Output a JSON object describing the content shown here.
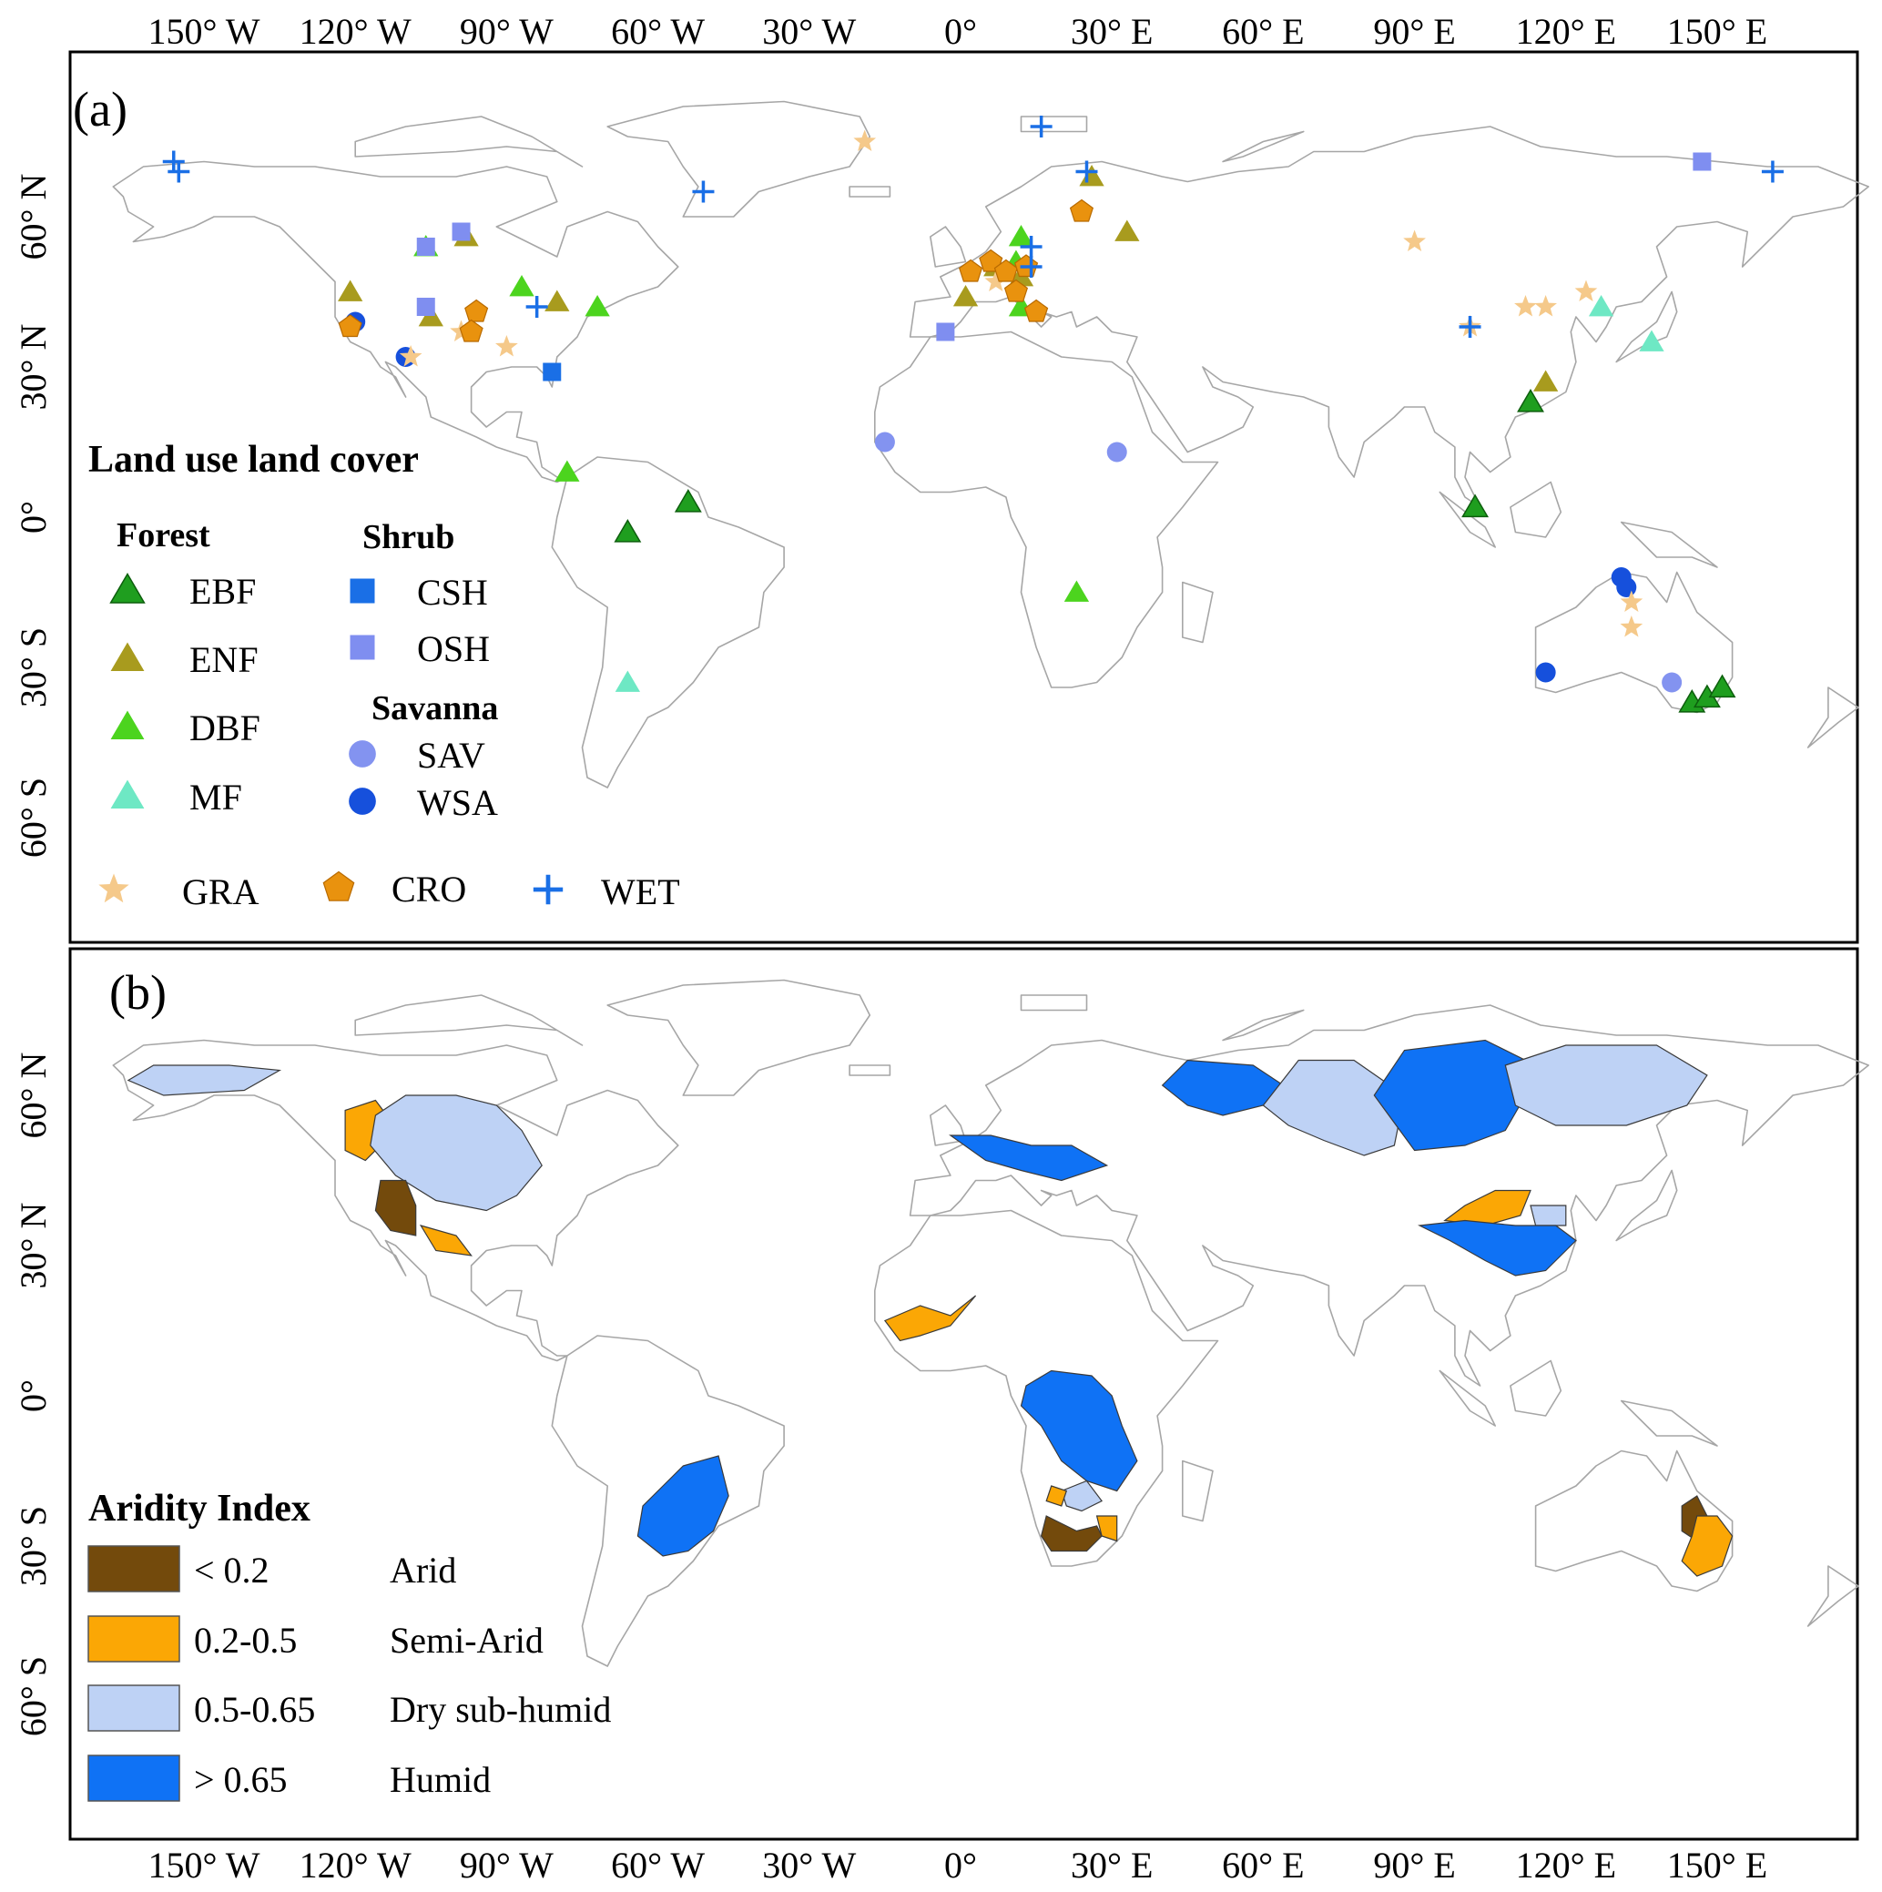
{
  "lon_ticks": [
    "150° W",
    "120° W",
    "90° W",
    "60° W",
    "30° W",
    "0°",
    "30° E",
    "60° E",
    "90° E",
    "120° E",
    "150° E"
  ],
  "lat_ticks": [
    "60° N",
    "30° N",
    "0°",
    "30° S",
    "60° S"
  ],
  "panel_a": {
    "label": "(a)",
    "legend": {
      "title": "Land use land cover",
      "forest_title": "Forest",
      "shrub_title": "Shrub",
      "savanna_title": "Savanna",
      "forest": [
        "EBF",
        "ENF",
        "DBF",
        "MF"
      ],
      "shrub": [
        "CSH",
        "OSH"
      ],
      "savanna": [
        "SAV",
        "WSA"
      ],
      "other": [
        "GRA",
        "CRO",
        "WET"
      ]
    },
    "colors": {
      "EBF": "#1f9e1f",
      "ENF": "#a89b1e",
      "DBF": "#4cd41e",
      "MF": "#6ee8c4",
      "CSH": "#1a6fe6",
      "OSH": "#7f8ef0",
      "SAV": "#8393f0",
      "WSA": "#1650dc",
      "GRA": "#f5c98a",
      "CRO": "#e9920e",
      "WET": "#1a6fe6"
    },
    "sites": [
      {
        "t": "EBF",
        "lon": -66,
        "lat": -3
      },
      {
        "t": "EBF",
        "lon": -54,
        "lat": 3
      },
      {
        "t": "EBF",
        "lon": 102,
        "lat": 2
      },
      {
        "t": "EBF",
        "lon": 113,
        "lat": 23
      },
      {
        "t": "EBF",
        "lon": 145,
        "lat": -37
      },
      {
        "t": "EBF",
        "lon": 148,
        "lat": -36
      },
      {
        "t": "EBF",
        "lon": 151,
        "lat": -34
      },
      {
        "t": "ENF",
        "lon": -121,
        "lat": 45
      },
      {
        "t": "ENF",
        "lon": -105,
        "lat": 40
      },
      {
        "t": "ENF",
        "lon": -98,
        "lat": 56
      },
      {
        "t": "ENF",
        "lon": -80,
        "lat": 43
      },
      {
        "t": "ENF",
        "lon": 1,
        "lat": 44
      },
      {
        "t": "ENF",
        "lon": 7,
        "lat": 50
      },
      {
        "t": "ENF",
        "lon": 12,
        "lat": 48
      },
      {
        "t": "ENF",
        "lon": 26,
        "lat": 68
      },
      {
        "t": "ENF",
        "lon": 33,
        "lat": 57
      },
      {
        "t": "ENF",
        "lon": 116,
        "lat": 27
      },
      {
        "t": "DBF",
        "lon": -106,
        "lat": 54
      },
      {
        "t": "DBF",
        "lon": -87,
        "lat": 46
      },
      {
        "t": "DBF",
        "lon": -72,
        "lat": 42
      },
      {
        "t": "DBF",
        "lon": -78,
        "lat": 9
      },
      {
        "t": "DBF",
        "lon": 23,
        "lat": -15
      },
      {
        "t": "DBF",
        "lon": 12,
        "lat": 56
      },
      {
        "t": "DBF",
        "lon": 11,
        "lat": 51
      },
      {
        "t": "DBF",
        "lon": 12,
        "lat": 42
      },
      {
        "t": "MF",
        "lon": -66,
        "lat": -33
      },
      {
        "t": "MF",
        "lon": 127,
        "lat": 42
      },
      {
        "t": "MF",
        "lon": 137,
        "lat": 35
      },
      {
        "t": "CSH",
        "lon": -81,
        "lat": 29
      },
      {
        "t": "OSH",
        "lon": -106,
        "lat": 54
      },
      {
        "t": "OSH",
        "lon": -99,
        "lat": 57
      },
      {
        "t": "OSH",
        "lon": -106,
        "lat": 42
      },
      {
        "t": "OSH",
        "lon": -3,
        "lat": 37
      },
      {
        "t": "OSH",
        "lon": 147,
        "lat": 71
      },
      {
        "t": "SAV",
        "lon": -15,
        "lat": 15
      },
      {
        "t": "SAV",
        "lon": 31,
        "lat": 13
      },
      {
        "t": "SAV",
        "lon": 141,
        "lat": -33
      },
      {
        "t": "WSA",
        "lon": -120,
        "lat": 39
      },
      {
        "t": "WSA",
        "lon": -110,
        "lat": 32
      },
      {
        "t": "WSA",
        "lon": 131,
        "lat": -12
      },
      {
        "t": "WSA",
        "lon": 132,
        "lat": -14
      },
      {
        "t": "WSA",
        "lon": 116,
        "lat": -31
      },
      {
        "t": "GRA",
        "lon": -109,
        "lat": 32
      },
      {
        "t": "GRA",
        "lon": -99,
        "lat": 37
      },
      {
        "t": "GRA",
        "lon": -90,
        "lat": 34
      },
      {
        "t": "GRA",
        "lon": -19,
        "lat": 75
      },
      {
        "t": "GRA",
        "lon": 90,
        "lat": 55
      },
      {
        "t": "GRA",
        "lon": 101,
        "lat": 38
      },
      {
        "t": "GRA",
        "lon": 112,
        "lat": 42
      },
      {
        "t": "GRA",
        "lon": 116,
        "lat": 42
      },
      {
        "t": "GRA",
        "lon": 124,
        "lat": 45
      },
      {
        "t": "GRA",
        "lon": 133,
        "lat": -17
      },
      {
        "t": "GRA",
        "lon": 133,
        "lat": -22
      },
      {
        "t": "GRA",
        "lon": 7,
        "lat": 47
      },
      {
        "t": "CRO",
        "lon": -121,
        "lat": 38
      },
      {
        "t": "CRO",
        "lon": -96,
        "lat": 41
      },
      {
        "t": "CRO",
        "lon": -97,
        "lat": 37
      },
      {
        "t": "CRO",
        "lon": 2,
        "lat": 49
      },
      {
        "t": "CRO",
        "lon": 6,
        "lat": 51
      },
      {
        "t": "CRO",
        "lon": 9,
        "lat": 49
      },
      {
        "t": "CRO",
        "lon": 13,
        "lat": 50
      },
      {
        "t": "CRO",
        "lon": 15,
        "lat": 41
      },
      {
        "t": "CRO",
        "lon": 24,
        "lat": 61
      },
      {
        "t": "CRO",
        "lon": 11,
        "lat": 45
      },
      {
        "t": "WET",
        "lon": -156,
        "lat": 71
      },
      {
        "t": "WET",
        "lon": -155,
        "lat": 69
      },
      {
        "t": "WET",
        "lon": -51,
        "lat": 65
      },
      {
        "t": "WET",
        "lon": 16,
        "lat": 78
      },
      {
        "t": "WET",
        "lon": 25,
        "lat": 69
      },
      {
        "t": "WET",
        "lon": 14,
        "lat": 54
      },
      {
        "t": "WET",
        "lon": 14,
        "lat": 50
      },
      {
        "t": "WET",
        "lon": -84,
        "lat": 42
      },
      {
        "t": "WET",
        "lon": 101,
        "lat": 38
      },
      {
        "t": "WET",
        "lon": 161,
        "lat": 69
      }
    ]
  },
  "panel_b": {
    "label": "(b)",
    "legend": {
      "title": "Aridity Index",
      "classes": [
        {
          "range": "< 0.2",
          "name": "Arid",
          "color": "#734a0c"
        },
        {
          "range": "0.2-0.5",
          "name": "Semi-Arid",
          "color": "#fba705"
        },
        {
          "range": "0.5-0.65",
          "name": "Dry sub-humid",
          "color": "#bed2f5"
        },
        {
          "range": "> 0.65",
          "name": "Humid",
          "color": "#0f72f5"
        }
      ]
    },
    "basins": [
      {
        "cls": "Dry sub-humid",
        "pts": [
          [
            -165,
            63
          ],
          [
            -160,
            66
          ],
          [
            -145,
            66
          ],
          [
            -135,
            65
          ],
          [
            -142,
            61
          ],
          [
            -158,
            60
          ]
        ]
      },
      {
        "cls": "Semi-Arid",
        "pts": [
          [
            -122,
            57
          ],
          [
            -116,
            59
          ],
          [
            -113,
            55
          ],
          [
            -114,
            51
          ],
          [
            -118,
            47
          ],
          [
            -122,
            49
          ]
        ]
      },
      {
        "cls": "Dry sub-humid",
        "pts": [
          [
            -116,
            56
          ],
          [
            -110,
            60
          ],
          [
            -100,
            60
          ],
          [
            -92,
            58
          ],
          [
            -87,
            53
          ],
          [
            -83,
            46
          ],
          [
            -88,
            40
          ],
          [
            -94,
            37
          ],
          [
            -104,
            39
          ],
          [
            -112,
            44
          ],
          [
            -117,
            50
          ]
        ]
      },
      {
        "cls": "Arid",
        "pts": [
          [
            -115,
            43
          ],
          [
            -110,
            43
          ],
          [
            -108,
            38
          ],
          [
            -108,
            32
          ],
          [
            -113,
            33
          ],
          [
            -116,
            37
          ]
        ]
      },
      {
        "cls": "Semi-Arid",
        "pts": [
          [
            -107,
            34
          ],
          [
            -100,
            32
          ],
          [
            -97,
            28
          ],
          [
            -104,
            29
          ]
        ]
      },
      {
        "cls": "Semi-Arid",
        "pts": [
          [
            -15,
            15
          ],
          [
            -8,
            18
          ],
          [
            -2,
            16
          ],
          [
            3,
            20
          ],
          [
            -2,
            14
          ],
          [
            -8,
            12
          ],
          [
            -12,
            11
          ]
        ]
      },
      {
        "cls": "Humid",
        "pts": [
          [
            13,
            2
          ],
          [
            18,
            5
          ],
          [
            26,
            4
          ],
          [
            30,
            0
          ],
          [
            32,
            -6
          ],
          [
            35,
            -13
          ],
          [
            31,
            -19
          ],
          [
            25,
            -17
          ],
          [
            20,
            -13
          ],
          [
            16,
            -6
          ],
          [
            12,
            -2
          ]
        ]
      },
      {
        "cls": "Dry sub-humid",
        "pts": [
          [
            20,
            -19
          ],
          [
            25,
            -17
          ],
          [
            28,
            -21
          ],
          [
            24,
            -23
          ],
          [
            21,
            -22
          ]
        ]
      },
      {
        "cls": "Semi-Arid",
        "pts": [
          [
            18,
            -18
          ],
          [
            21,
            -19
          ],
          [
            20,
            -22
          ],
          [
            17,
            -21
          ]
        ]
      },
      {
        "cls": "Arid",
        "pts": [
          [
            17,
            -24
          ],
          [
            23,
            -27
          ],
          [
            27,
            -26
          ],
          [
            28,
            -28
          ],
          [
            25,
            -31
          ],
          [
            18,
            -31
          ],
          [
            16,
            -28
          ]
        ]
      },
      {
        "cls": "Semi-Arid",
        "pts": [
          [
            27,
            -24
          ],
          [
            31,
            -24
          ],
          [
            31,
            -29
          ],
          [
            28,
            -28
          ]
        ]
      },
      {
        "cls": "Humid",
        "pts": [
          [
            -55,
            -14
          ],
          [
            -48,
            -12
          ],
          [
            -46,
            -20
          ],
          [
            -49,
            -27
          ],
          [
            -54,
            -31
          ],
          [
            -59,
            -32
          ],
          [
            -64,
            -28
          ],
          [
            -63,
            -22
          ],
          [
            -58,
            -17
          ]
        ]
      },
      {
        "cls": "Humid",
        "pts": [
          [
            -2,
            52
          ],
          [
            6,
            52
          ],
          [
            14,
            50
          ],
          [
            22,
            50
          ],
          [
            29,
            46
          ],
          [
            20,
            43
          ],
          [
            12,
            45
          ],
          [
            5,
            47
          ]
        ]
      },
      {
        "cls": "Humid",
        "pts": [
          [
            40,
            62
          ],
          [
            45,
            67
          ],
          [
            58,
            66
          ],
          [
            64,
            62
          ],
          [
            60,
            58
          ],
          [
            52,
            56
          ],
          [
            45,
            58
          ]
        ]
      },
      {
        "cls": "Dry sub-humid",
        "pts": [
          [
            60,
            58
          ],
          [
            67,
            67
          ],
          [
            78,
            67
          ],
          [
            88,
            60
          ],
          [
            86,
            50
          ],
          [
            80,
            48
          ],
          [
            72,
            51
          ],
          [
            65,
            54
          ]
        ]
      },
      {
        "cls": "Humid",
        "pts": [
          [
            82,
            60
          ],
          [
            88,
            69
          ],
          [
            104,
            71
          ],
          [
            112,
            67
          ],
          [
            112,
            60
          ],
          [
            108,
            53
          ],
          [
            100,
            50
          ],
          [
            90,
            49
          ]
        ]
      },
      {
        "cls": "Dry sub-humid",
        "pts": [
          [
            108,
            66
          ],
          [
            120,
            70
          ],
          [
            138,
            70
          ],
          [
            148,
            64
          ],
          [
            144,
            58
          ],
          [
            132,
            54
          ],
          [
            118,
            54
          ],
          [
            110,
            58
          ]
        ]
      },
      {
        "cls": "Semi-Arid",
        "pts": [
          [
            96,
            35
          ],
          [
            104,
            34
          ],
          [
            111,
            36
          ],
          [
            113,
            41
          ],
          [
            106,
            41
          ],
          [
            100,
            38
          ]
        ]
      },
      {
        "cls": "Dry sub-humid",
        "pts": [
          [
            113,
            38
          ],
          [
            120,
            38
          ],
          [
            120,
            34
          ],
          [
            114,
            34
          ]
        ]
      },
      {
        "cls": "Humid",
        "pts": [
          [
            91,
            34
          ],
          [
            100,
            35
          ],
          [
            110,
            34
          ],
          [
            118,
            34
          ],
          [
            122,
            31
          ],
          [
            116,
            25
          ],
          [
            110,
            24
          ],
          [
            104,
            27
          ],
          [
            97,
            31
          ]
        ]
      },
      {
        "cls": "Arid",
        "pts": [
          [
            143,
            -22
          ],
          [
            146,
            -20
          ],
          [
            148,
            -24
          ],
          [
            146,
            -29
          ],
          [
            143,
            -27
          ]
        ]
      },
      {
        "cls": "Semi-Arid",
        "pts": [
          [
            146,
            -24
          ],
          [
            150,
            -24
          ],
          [
            153,
            -28
          ],
          [
            151,
            -34
          ],
          [
            146,
            -36
          ],
          [
            143,
            -33
          ],
          [
            145,
            -28
          ]
        ]
      }
    ]
  }
}
